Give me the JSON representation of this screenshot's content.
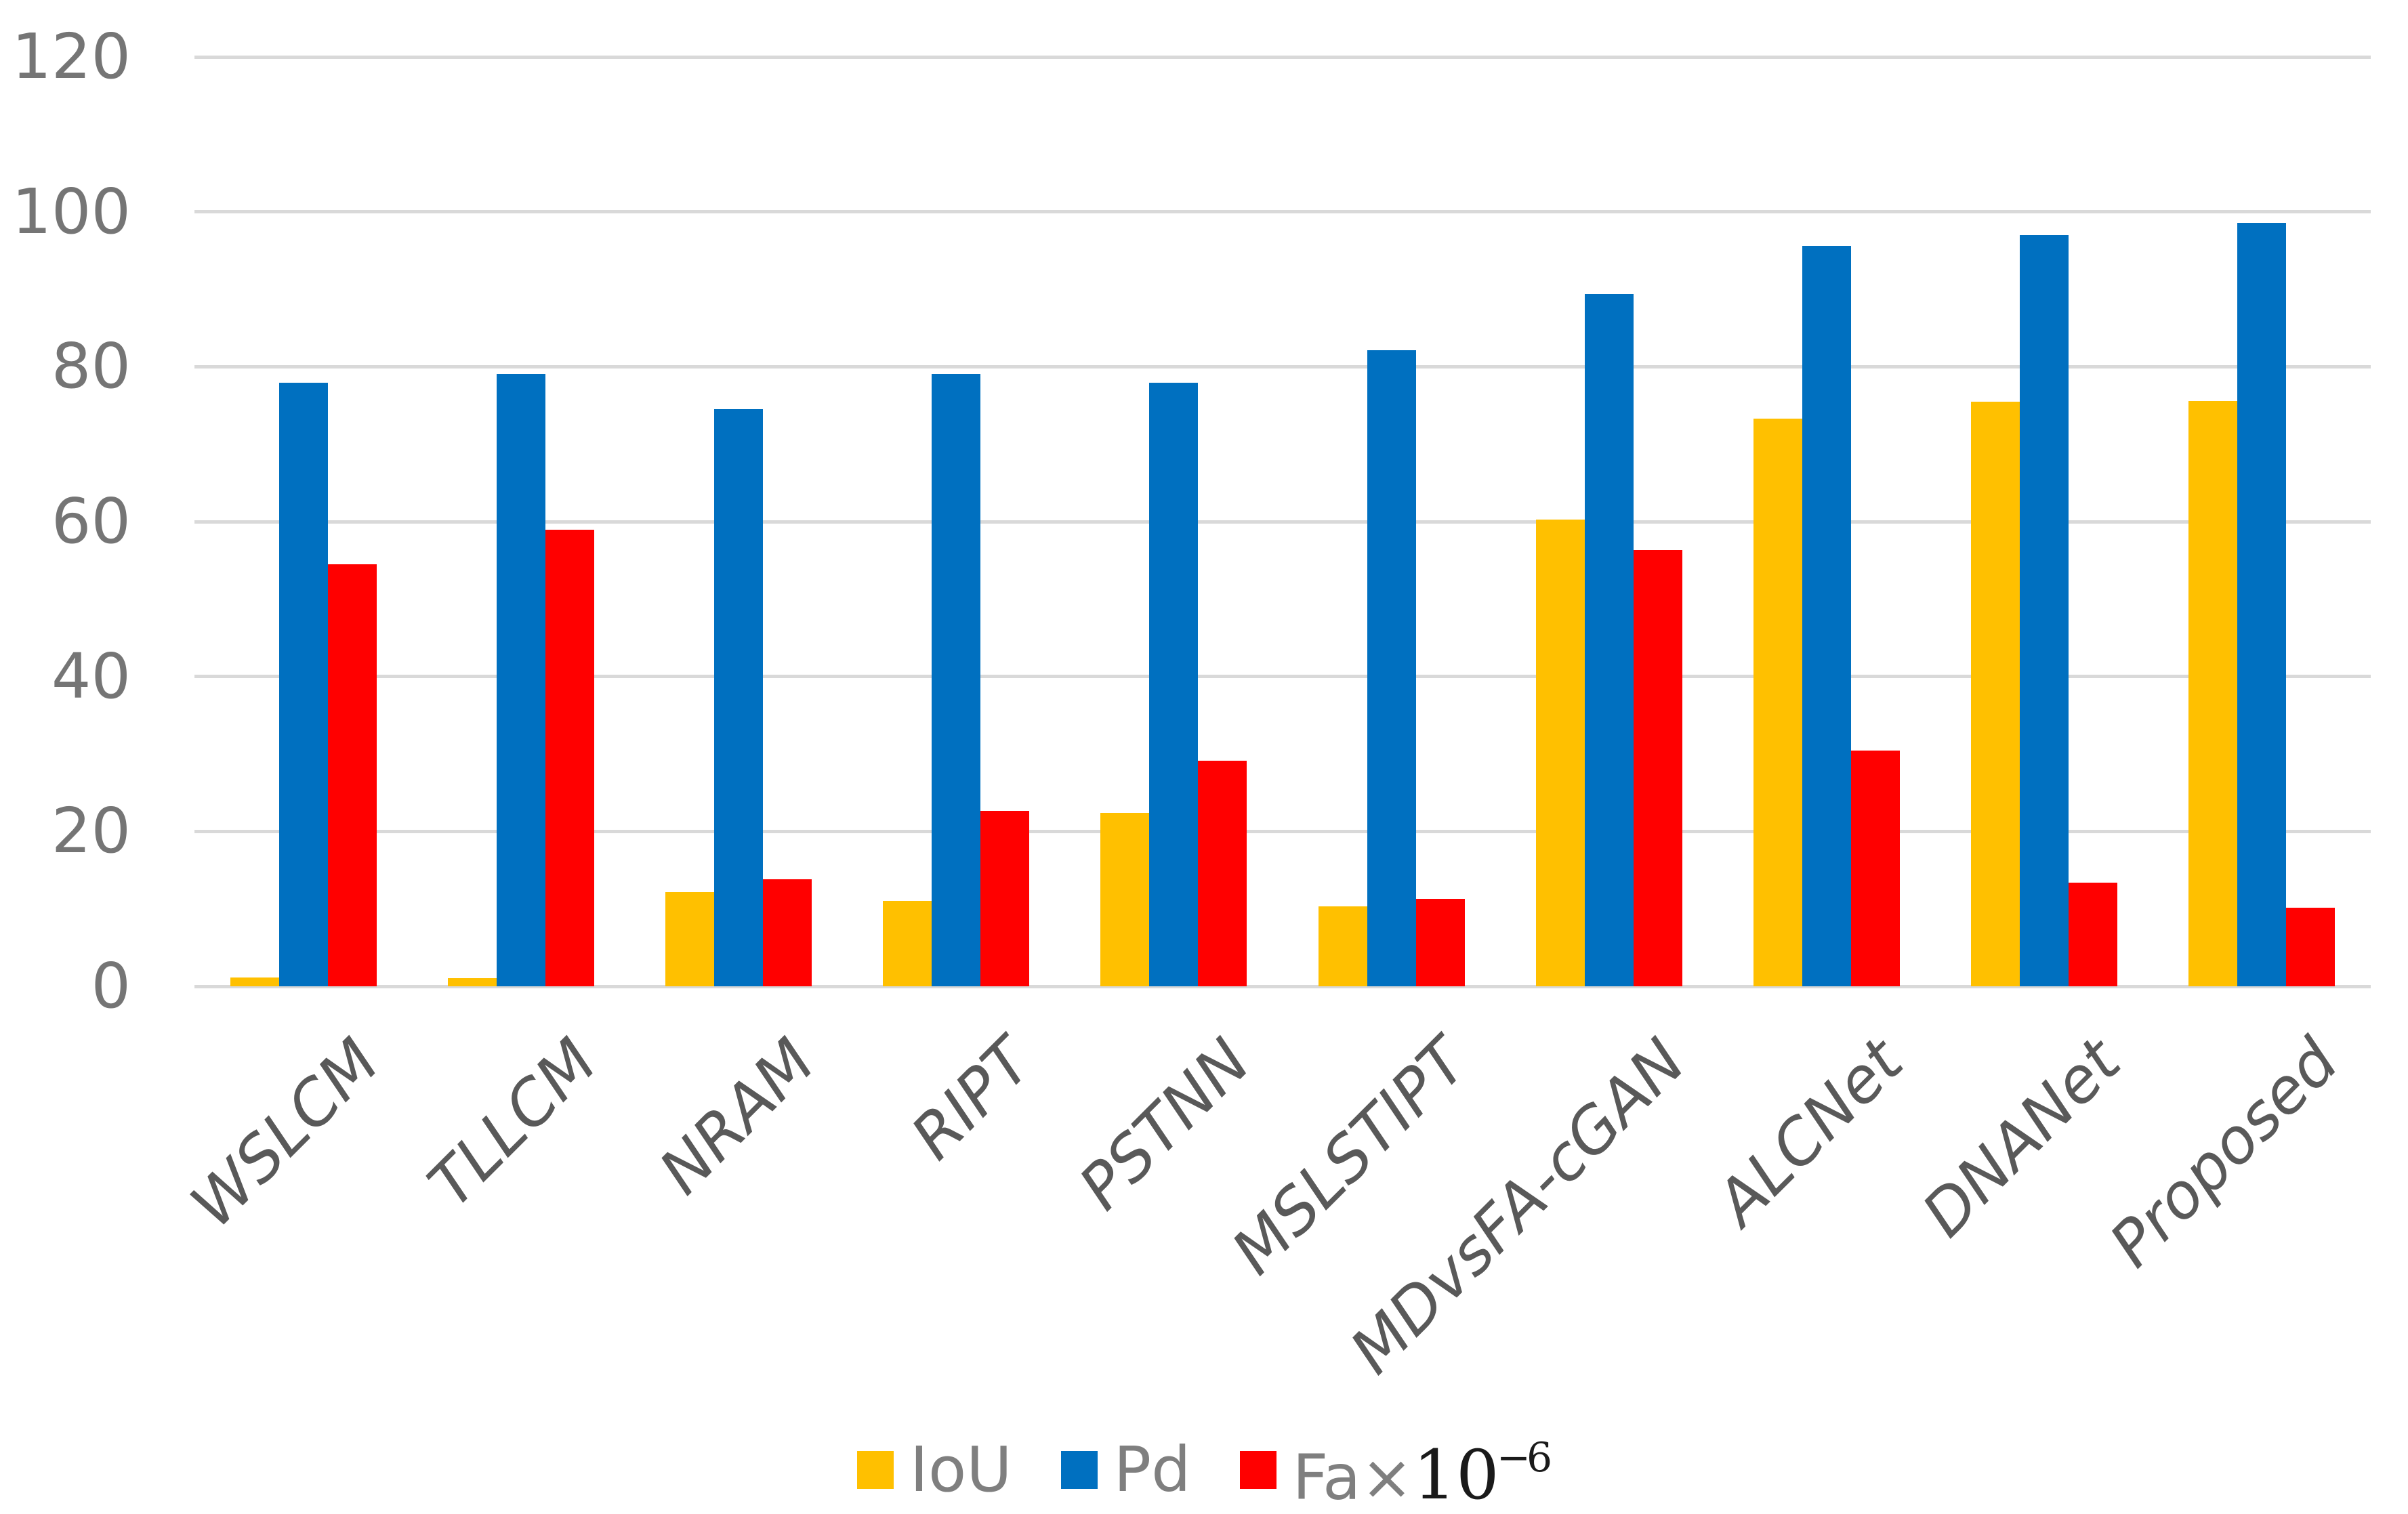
{
  "chart_data": {
    "type": "bar",
    "title": "",
    "xlabel": "",
    "ylabel": "",
    "categories": [
      "WSLCM",
      "TLLCM",
      "NRAM",
      "RIPT",
      "PSTNN",
      "MSLSTIPT",
      "MDvsFA-cGAN",
      "ALCNet",
      "DNANet",
      "Proposed"
    ],
    "series": [
      {
        "name": "IoU",
        "color": "#FFC000",
        "values": [
          1.16,
          1.03,
          12.16,
          11.05,
          22.4,
          10.3,
          60.3,
          73.33,
          75.5,
          75.6
        ]
      },
      {
        "name": "Pd",
        "color": "#0070C0",
        "values": [
          77.95,
          79.09,
          74.52,
          79.08,
          77.95,
          82.13,
          89.35,
          95.57,
          96.96,
          98.55
        ]
      },
      {
        "name": "Fa×10⁻⁶",
        "color": "#FF0000",
        "values": [
          54.46,
          58.99,
          13.85,
          22.61,
          29.11,
          11.31,
          56.35,
          30.47,
          13.35,
          10.15
        ]
      }
    ],
    "ylim": [
      0,
      120
    ],
    "yticks": [
      0,
      20,
      40,
      60,
      80,
      100,
      120
    ],
    "grid": true,
    "grid_color": "#D9D9D9",
    "legend_position": "bottom",
    "legend": [
      {
        "label": "IoU",
        "swatch_color": "#FFC000"
      },
      {
        "label": "Pd",
        "swatch_color": "#0070C0"
      },
      {
        "label": "Fa×",
        "exp_base": "10",
        "exp_sup": "−6",
        "swatch_color": "#FF0000"
      }
    ],
    "axis_text_color": "#757575",
    "category_text_color": "#595959",
    "legend_text_color": "#7F7F7F",
    "background_color": "#FFFFFF"
  }
}
